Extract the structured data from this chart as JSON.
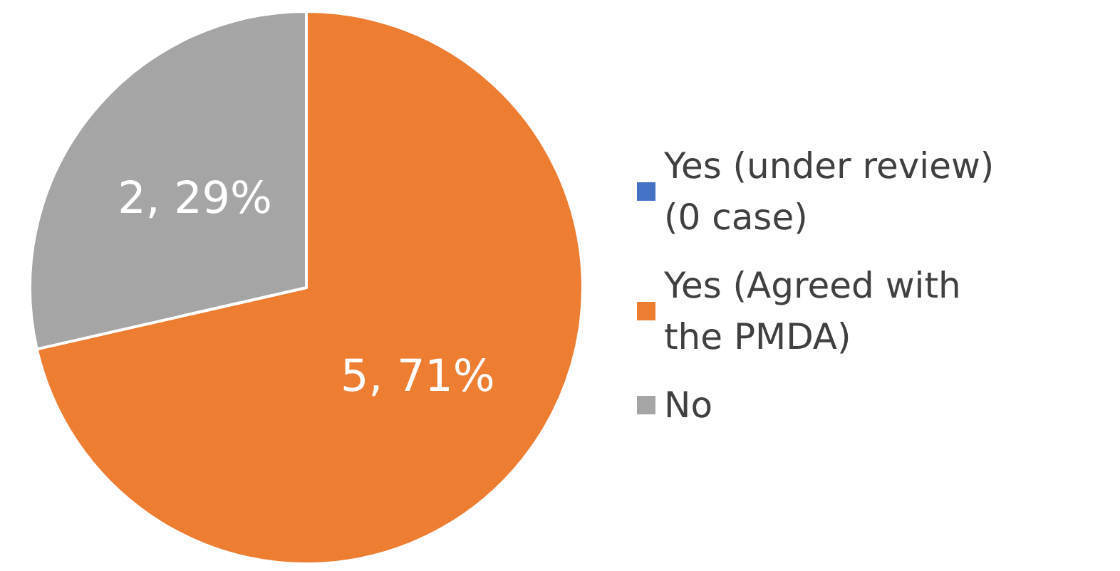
{
  "chart_data": {
    "type": "pie",
    "categories": [
      "Yes (under review) (0 case)",
      "Yes (Agreed with the PMDA)",
      "No"
    ],
    "values": [
      0,
      5,
      2
    ],
    "colors": [
      "#4472c4",
      "#ed7d31",
      "#a5a5a5"
    ],
    "value_labels": [
      null,
      "5, 71%",
      "2, 29%"
    ],
    "legend": "right"
  }
}
